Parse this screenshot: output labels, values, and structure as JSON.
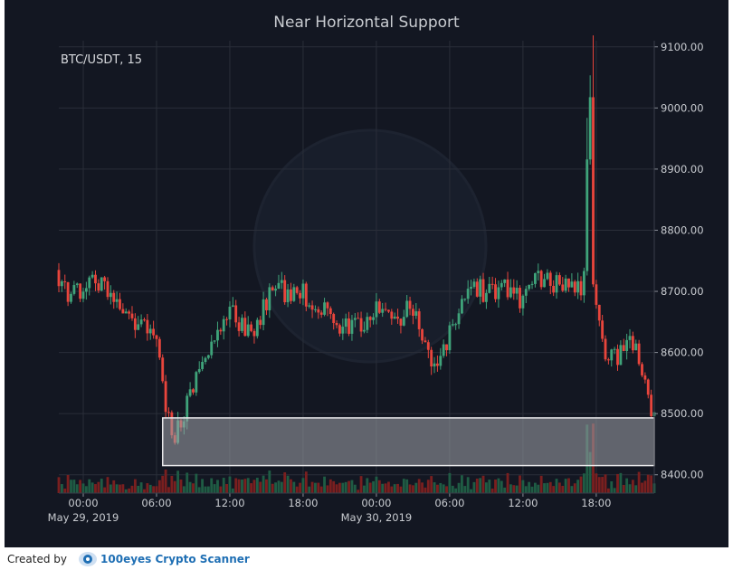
{
  "chart_data": {
    "type": "candlestick",
    "title": "Near Horizontal Support",
    "symbol_label": "BTC/USDT, 15",
    "ylim": [
      8370,
      9110
    ],
    "y_ticks": [
      8400,
      8500,
      8600,
      8700,
      8800,
      8900,
      9000,
      9100
    ],
    "y_tick_labels": [
      "8400.00",
      "8500.00",
      "8600.00",
      "8700.00",
      "8800.00",
      "8900.00",
      "9000.00",
      "9100.00"
    ],
    "x_start": "2019-05-28 22:00",
    "x_end": "2019-05-30 22:45",
    "x_ticks": [
      "2019-05-29 00:00",
      "2019-05-29 06:00",
      "2019-05-29 12:00",
      "2019-05-29 18:00",
      "2019-05-30 00:00",
      "2019-05-30 06:00",
      "2019-05-30 12:00",
      "2019-05-30 18:00"
    ],
    "x_tick_labels": [
      "00:00",
      "06:00",
      "12:00",
      "18:00",
      "00:00",
      "06:00",
      "12:00",
      "18:00"
    ],
    "x_date_labels": [
      {
        "x": "2019-05-29 00:00",
        "text": "May 29, 2019"
      },
      {
        "x": "2019-05-30 00:00",
        "text": "May 30, 2019"
      }
    ],
    "support_zone": {
      "x_from": "2019-05-29 06:30",
      "x_to": "2019-05-30 22:45",
      "y_from": 8415,
      "y_to": 8493
    },
    "grid": true,
    "up_color": "#3fa37a",
    "down_color": "#e8453c",
    "volume_up_color": "#1f5c44",
    "volume_down_color": "#7a1f1f",
    "price_points": [
      [
        "2019-05-28 22:00",
        8735
      ],
      [
        "2019-05-28 23:00",
        8690
      ],
      [
        "2019-05-29 00:00",
        8705
      ],
      [
        "2019-05-29 01:00",
        8720
      ],
      [
        "2019-05-29 02:00",
        8705
      ],
      [
        "2019-05-29 03:00",
        8690
      ],
      [
        "2019-05-29 04:00",
        8660
      ],
      [
        "2019-05-29 05:00",
        8645
      ],
      [
        "2019-05-29 06:00",
        8630
      ],
      [
        "2019-05-29 06:30",
        8580
      ],
      [
        "2019-05-29 07:00",
        8520
      ],
      [
        "2019-05-29 07:30",
        8450
      ],
      [
        "2019-05-29 08:00",
        8480
      ],
      [
        "2019-05-29 09:00",
        8530
      ],
      [
        "2019-05-29 10:00",
        8580
      ],
      [
        "2019-05-29 11:00",
        8620
      ],
      [
        "2019-05-29 12:00",
        8670
      ],
      [
        "2019-05-29 13:00",
        8650
      ],
      [
        "2019-05-29 14:00",
        8630
      ],
      [
        "2019-05-29 15:00",
        8670
      ],
      [
        "2019-05-29 16:00",
        8720
      ],
      [
        "2019-05-29 17:00",
        8690
      ],
      [
        "2019-05-29 18:00",
        8700
      ],
      [
        "2019-05-29 19:00",
        8680
      ],
      [
        "2019-05-29 20:00",
        8670
      ],
      [
        "2019-05-29 21:00",
        8650
      ],
      [
        "2019-05-29 22:00",
        8640
      ],
      [
        "2019-05-29 23:00",
        8645
      ],
      [
        "2019-05-30 00:00",
        8670
      ],
      [
        "2019-05-30 01:00",
        8660
      ],
      [
        "2019-05-30 02:00",
        8650
      ],
      [
        "2019-05-30 03:00",
        8680
      ],
      [
        "2019-05-30 04:00",
        8620
      ],
      [
        "2019-05-30 05:00",
        8570
      ],
      [
        "2019-05-30 06:00",
        8610
      ],
      [
        "2019-05-30 07:00",
        8680
      ],
      [
        "2019-05-30 08:00",
        8710
      ],
      [
        "2019-05-30 09:00",
        8700
      ],
      [
        "2019-05-30 10:00",
        8700
      ],
      [
        "2019-05-30 11:00",
        8705
      ],
      [
        "2019-05-30 12:00",
        8690
      ],
      [
        "2019-05-30 13:00",
        8715
      ],
      [
        "2019-05-30 14:00",
        8720
      ],
      [
        "2019-05-30 15:00",
        8710
      ],
      [
        "2019-05-30 16:00",
        8705
      ],
      [
        "2019-05-30 17:00",
        8700
      ],
      [
        "2019-05-30 17:15",
        8750
      ],
      [
        "2019-05-30 17:30",
        8920
      ],
      [
        "2019-05-30 17:45",
        9020
      ],
      [
        "2019-05-30 18:00",
        8710
      ],
      [
        "2019-05-30 18:30",
        8640
      ],
      [
        "2019-05-30 19:00",
        8600
      ],
      [
        "2019-05-30 20:00",
        8590
      ],
      [
        "2019-05-30 21:00",
        8630
      ],
      [
        "2019-05-30 22:00",
        8580
      ],
      [
        "2019-05-30 22:45",
        8490
      ]
    ]
  },
  "footer": {
    "created_by": "Created by",
    "brand": "100eyes Crypto Scanner"
  }
}
